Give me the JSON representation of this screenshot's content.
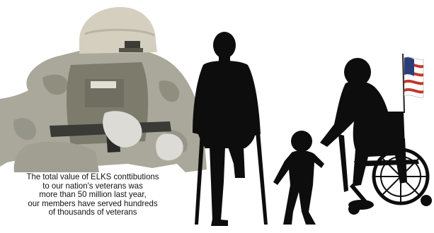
{
  "caption": {
    "lines": [
      "The total value of ELKS conttibutions",
      "to our nation's veterans was",
      "more than 50 million last year,",
      "our members have served hundreds",
      "of thousands of veterans"
    ]
  },
  "colors": {
    "background": "#ffffff",
    "silhouette": "#0d0d0d",
    "uniform": "#a9a89a",
    "helmet": "#d4cfbf",
    "flag_red": "#c0392b",
    "flag_blue": "#2c3e7a"
  },
  "figures": [
    "soldier-photo",
    "man-on-crutches-silhouette",
    "child-silhouette",
    "veteran-in-wheelchair-silhouette",
    "american-flag"
  ]
}
